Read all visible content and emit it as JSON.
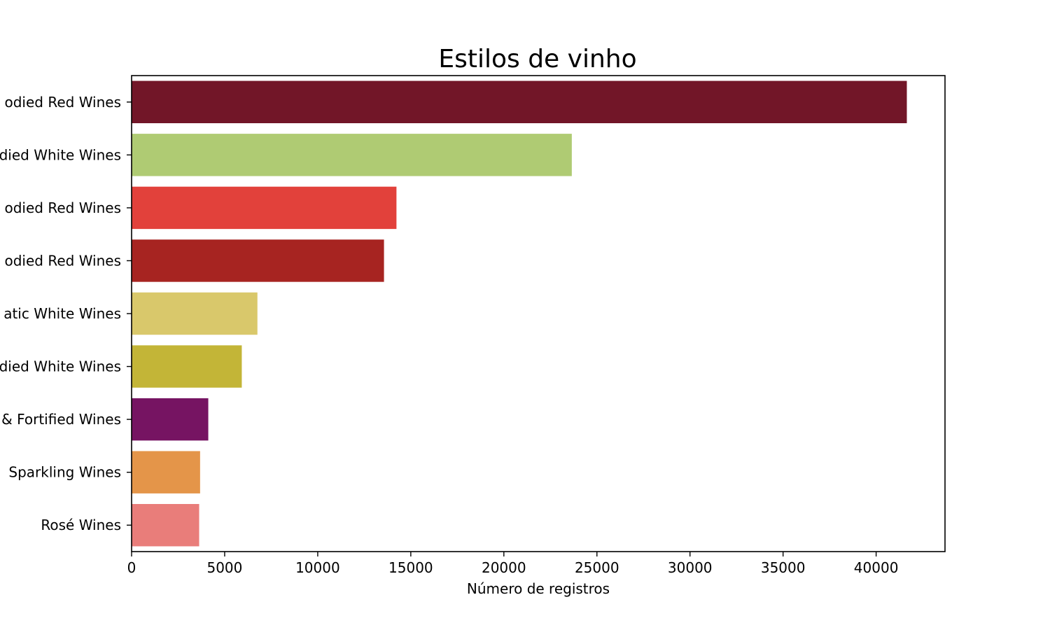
{
  "chart_data": {
    "type": "bar",
    "orientation": "horizontal",
    "title": "Estilos de vinho",
    "xlabel": "Número de registros",
    "ylabel": "",
    "xlim": [
      0,
      43700
    ],
    "xticks": [
      0,
      5000,
      10000,
      15000,
      20000,
      25000,
      30000,
      35000,
      40000
    ],
    "xtick_labels": [
      "0",
      "5000",
      "10000",
      "15000",
      "20000",
      "25000",
      "30000",
      "35000",
      "40000"
    ],
    "category_labels_visible": [
      "odied Red Wines",
      "died White Wines",
      "odied Red Wines",
      "odied Red Wines",
      "atic White Wines",
      "died White Wines",
      "& Fortified Wines",
      "Sparkling Wines",
      "Rosé Wines"
    ],
    "values": [
      41650,
      23650,
      14230,
      13560,
      6760,
      5920,
      4120,
      3680,
      3630
    ],
    "colors": [
      "#721628",
      "#afcb73",
      "#e2413b",
      "#a72421",
      "#d9c86b",
      "#c3b537",
      "#761462",
      "#e49549",
      "#e97d7a"
    ],
    "grid": false,
    "legend": "none"
  }
}
